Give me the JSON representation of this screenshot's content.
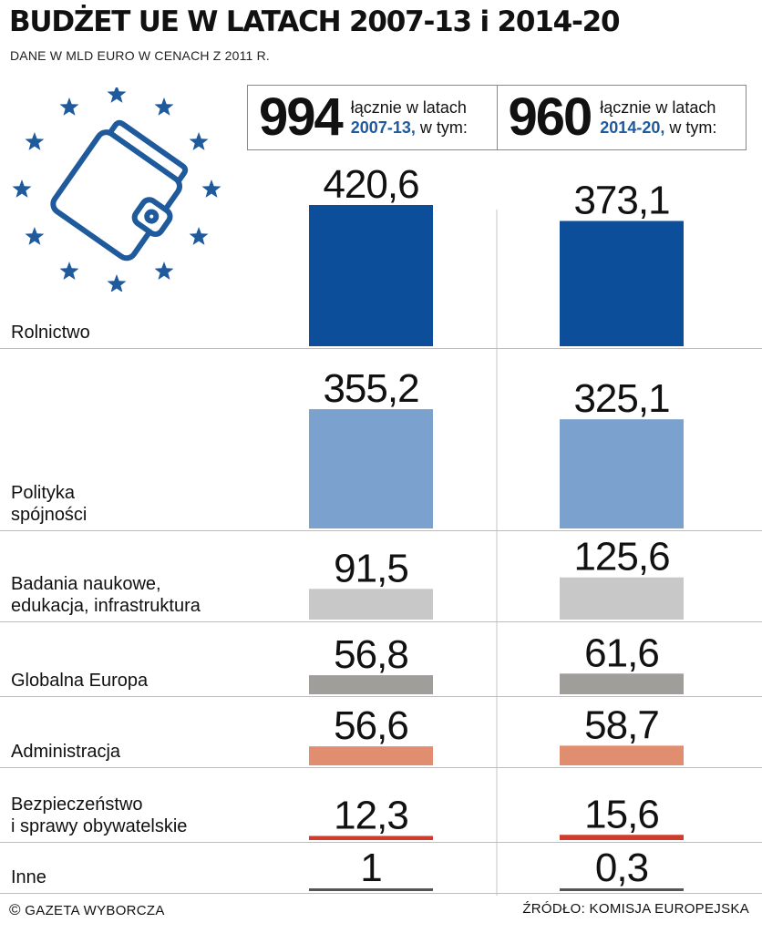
{
  "title": "BUDŻET UE W LATACH 2007-13 i 2014-20",
  "subtitle": "DANE W MLD EURO W CENACH Z 2011 R.",
  "totals": [
    {
      "value": "994",
      "label_prefix": "łącznie w latach",
      "years": "2007-13,",
      "suffix": "w tym:"
    },
    {
      "value": "960",
      "label_prefix": "łącznie w latach",
      "years": "2014-20,",
      "suffix": "w tym:"
    }
  ],
  "emblem": {
    "icon": "wallet-icon",
    "stars_icon": "eu-stars-icon",
    "color": "#1f5a9c"
  },
  "chart_data": {
    "type": "bar",
    "series": [
      {
        "name": "2007-13",
        "values": [
          420.6,
          355.2,
          91.5,
          56.8,
          56.6,
          12.3,
          1
        ]
      },
      {
        "name": "2014-20",
        "values": [
          373.1,
          325.1,
          125.6,
          61.6,
          58.7,
          15.6,
          0.3
        ]
      }
    ],
    "categories": [
      [
        "Rolnictwo"
      ],
      [
        "Polityka",
        "spójności"
      ],
      [
        "Badania naukowe,",
        "edukacja, infrastruktura"
      ],
      [
        "Globalna Europa"
      ],
      [
        "Administracja"
      ],
      [
        "Bezpieczeństwo",
        "i sprawy obywatelskie"
      ],
      [
        "Inne"
      ]
    ],
    "value_labels": [
      [
        "420,6",
        "355,2",
        "91,5",
        "56,8",
        "56,6",
        "12,3",
        "1"
      ],
      [
        "373,1",
        "325,1",
        "125,6",
        "61,6",
        "58,7",
        "15,6",
        "0,3"
      ]
    ],
    "colors": [
      "#0d4e9b",
      "#7ba2cf",
      "#c8c8c8",
      "#a09e9b",
      "#e18e70",
      "#d13b2c",
      "#555555"
    ]
  },
  "footer": {
    "left_symbol": "©",
    "left": "GAZETA WYBORCZA",
    "right": "ŹRÓDŁO: KOMISJA EUROPEJSKA"
  }
}
